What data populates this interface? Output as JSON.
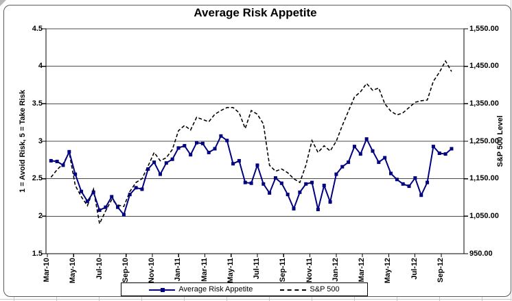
{
  "chart_data": {
    "type": "line",
    "title": "Average Risk Appetite",
    "frequency": "biweekly observations, Mar-2010 through Oct-2012",
    "grid": "horizontal",
    "legend_position": "bottom",
    "left_axis": {
      "title": "1 = Avoid Risk, 5 = Take Risk",
      "min": 1.5,
      "max": 4.5,
      "step": 0.5,
      "tick_labels": [
        "4.5",
        "4",
        "3.5",
        "3",
        "2.5",
        "2",
        "1.5"
      ]
    },
    "right_axis": {
      "title": "S&P 500 Level",
      "min": 950,
      "max": 1550,
      "step": 100,
      "tick_labels": [
        "1,550.00",
        "1,450.00",
        "1,350.00",
        "1,250.00",
        "1,150.00",
        "1,050.00",
        "950.00"
      ]
    },
    "x_tick_labels": [
      "Mar-10",
      "May-10",
      "Jul-10",
      "Sep-10",
      "Nov-10",
      "Jan-11",
      "Mar-11",
      "May-11",
      "Jul-11",
      "Sep-11",
      "Nov-11",
      "Jan-12",
      "Mar-12",
      "May-12",
      "Jul-12",
      "Sep-12"
    ],
    "series": [
      {
        "name": "Average Risk Appetite",
        "axis": "left",
        "style": "solid line with square markers",
        "color": "#000080",
        "values": [
          2.74,
          2.73,
          2.68,
          2.86,
          2.56,
          2.33,
          2.2,
          2.32,
          2.08,
          2.12,
          2.26,
          2.12,
          2.02,
          2.29,
          2.38,
          2.36,
          2.63,
          2.72,
          2.56,
          2.71,
          2.76,
          2.91,
          2.94,
          2.82,
          2.98,
          2.97,
          2.85,
          2.9,
          3.07,
          3.01,
          2.7,
          2.74,
          2.45,
          2.44,
          2.68,
          2.43,
          2.31,
          2.51,
          2.44,
          2.29,
          2.1,
          2.32,
          2.43,
          2.45,
          2.09,
          2.41,
          2.19,
          2.56,
          2.66,
          2.72,
          2.93,
          2.83,
          3.03,
          2.87,
          2.72,
          2.78,
          2.57,
          2.49,
          2.43,
          2.4,
          2.51,
          2.28,
          2.45,
          2.93,
          2.84,
          2.83,
          2.9
        ]
      },
      {
        "name": "S&P 500",
        "axis": "right",
        "style": "dashed line",
        "color": "#000000",
        "values": [
          1154,
          1174,
          1190,
          1220,
          1132,
          1102,
          1078,
          1122,
          1030,
          1064,
          1094,
          1080,
          1076,
          1116,
          1140,
          1150,
          1184,
          1220,
          1198,
          1206,
          1228,
          1278,
          1292,
          1280,
          1314,
          1308,
          1302,
          1322,
          1332,
          1340,
          1340,
          1326,
          1284,
          1332,
          1322,
          1296,
          1186,
          1170,
          1176,
          1166,
          1150,
          1140,
          1186,
          1252,
          1220,
          1238,
          1224,
          1250,
          1292,
          1330,
          1368,
          1382,
          1404,
          1386,
          1392,
          1350,
          1330,
          1320,
          1326,
          1340,
          1354,
          1358,
          1360,
          1410,
          1434,
          1464,
          1436
        ]
      }
    ],
    "colors": {
      "risk_line": "#000080",
      "sp_line": "#000000",
      "gridline": "#4a4a4a"
    }
  },
  "legend": {
    "item1": "Average Risk Appetite",
    "item2": "S&P 500"
  }
}
